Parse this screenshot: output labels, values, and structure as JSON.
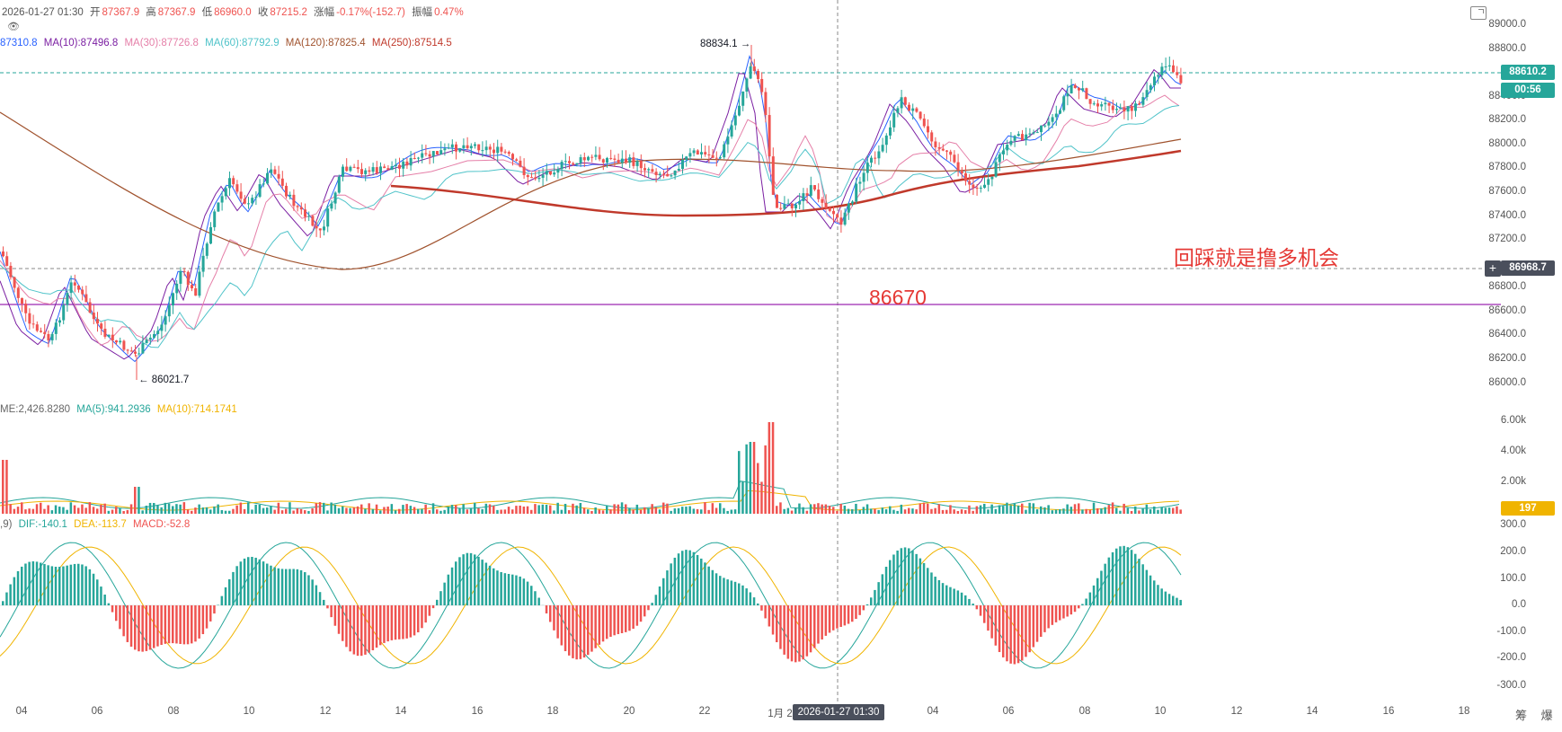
{
  "header": {
    "date": "2026-01-27 01:30",
    "open_label": "开",
    "open": "87367.9",
    "high_label": "高",
    "high": "87367.9",
    "low_label": "低",
    "low": "86960.0",
    "close_label": "收",
    "close": "87215.2",
    "change_label": "涨幅",
    "change": "-0.17%(-152.7)",
    "amp_label": "振幅",
    "amp": "0.47%"
  },
  "ma_legend": [
    {
      "text": "87310.8",
      "color": "#2962ff"
    },
    {
      "text": "MA(10):87496.8",
      "color": "#7b1fa2"
    },
    {
      "text": "MA(30):87726.8",
      "color": "#e57fa8"
    },
    {
      "text": "MA(60):87792.9",
      "color": "#4fc3c9"
    },
    {
      "text": "MA(120):87825.4",
      "color": "#a0522d"
    },
    {
      "text": "MA(250):87514.5",
      "color": "#c0392b"
    }
  ],
  "vol_legend": [
    {
      "text": "ME:2,426.8280",
      "color": "#666666"
    },
    {
      "text": "MA(5):941.2936",
      "color": "#26a69a"
    },
    {
      "text": "MA(10):714.1741",
      "color": "#f0b400"
    }
  ],
  "macd_legend": [
    {
      "text": ",9)",
      "color": "#666666"
    },
    {
      "text": "DIF:-140.1",
      "color": "#26a69a"
    },
    {
      "text": "DEA:-113.7",
      "color": "#f0b400"
    },
    {
      "text": "MACD:-52.8",
      "color": "#ef5350"
    }
  ],
  "price_axis": [
    "89000.0",
    "88800.0",
    "88400.0",
    "88200.0",
    "88000.0",
    "87800.0",
    "87600.0",
    "87400.0",
    "87200.0",
    "86800.0",
    "86600.0",
    "86400.0",
    "86200.0",
    "86000.0"
  ],
  "vol_axis": [
    "6.00k",
    "4.00k",
    "2.00k"
  ],
  "macd_axis": [
    "300.0",
    "200.0",
    "100.0",
    "0.0",
    "-100.0",
    "-200.0",
    "-300.0"
  ],
  "time_axis": [
    "04",
    "06",
    "08",
    "10",
    "12",
    "14",
    "16",
    "18",
    "20",
    "22",
    "1月 2",
    "04",
    "06",
    "08",
    "10",
    "12",
    "14",
    "16",
    "18"
  ],
  "price_tags": {
    "current_price": "88610.2",
    "countdown": "00:56",
    "crosshair_price": "86968.7",
    "volume_value": "197"
  },
  "crosshair_time": "2026-01-27 01:30",
  "annotations": {
    "high_marker": "88834.1",
    "low_marker": "86021.7",
    "level_text": "86670",
    "callout_text": "回踩就是撸多机会"
  },
  "bottom_tabs": "筹 爆",
  "colors": {
    "up": "#26a69a",
    "down": "#ef5350",
    "accent_green": "#26a69a",
    "crosshair_tag": "#4a4f5c",
    "annotation_red": "#e53935",
    "level_line": "#9c27b0"
  }
}
